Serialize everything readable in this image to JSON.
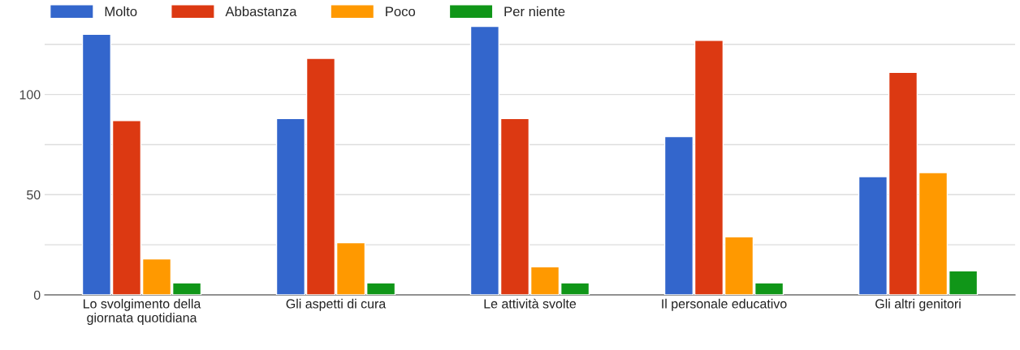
{
  "chart_data": {
    "type": "bar",
    "categories": [
      "Lo svolgimento della giornata quotidiana",
      "Gli aspetti di cura",
      "Le attività svolte",
      "Il personale educativo",
      "Gli altri genitori"
    ],
    "series": [
      {
        "name": "Molto",
        "color": "#3366cc",
        "values": [
          130,
          88,
          134,
          79,
          59
        ]
      },
      {
        "name": "Abbastanza",
        "color": "#dc3912",
        "values": [
          87,
          118,
          88,
          127,
          111
        ]
      },
      {
        "name": "Poco",
        "color": "#ff9900",
        "values": [
          18,
          26,
          14,
          29,
          61
        ]
      },
      {
        "name": "Per niente",
        "color": "#109618",
        "values": [
          6,
          6,
          6,
          6,
          12
        ]
      }
    ],
    "ylim": [
      0,
      135
    ],
    "yticks": [
      0,
      {
        "value": 25,
        "label": null
      },
      50,
      {
        "value": 75,
        "label": null
      },
      100,
      {
        "value": 125,
        "label": null
      }
    ],
    "grid": "y",
    "legend": "top left"
  }
}
